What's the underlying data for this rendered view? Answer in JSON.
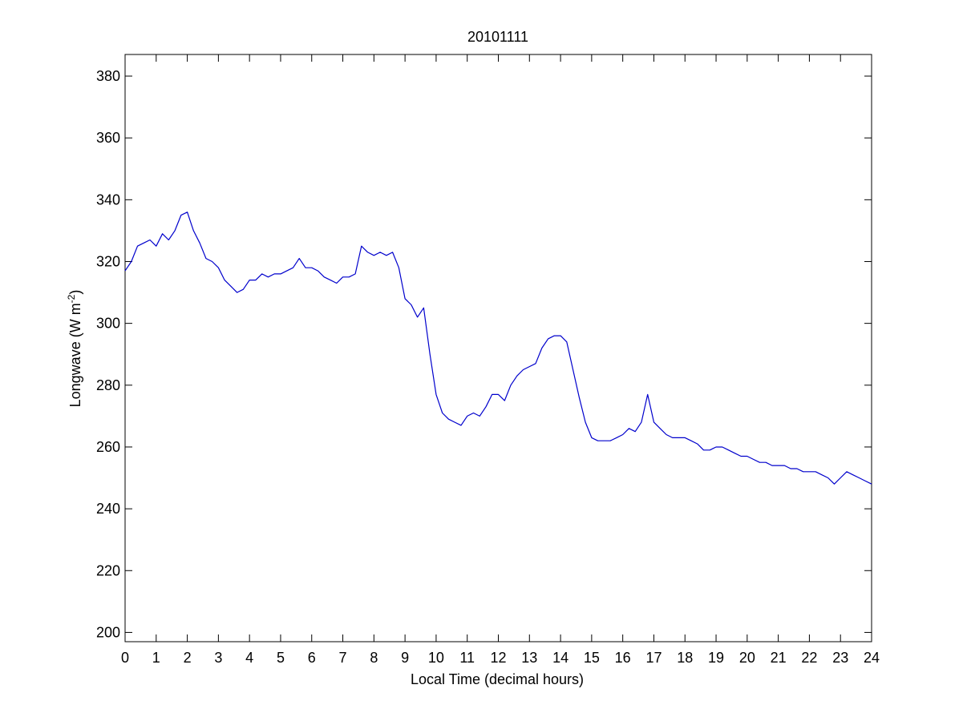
{
  "chart_data": {
    "type": "line",
    "title": "20101111",
    "xlabel": "Local Time (decimal hours)",
    "ylabel_main": "Longwave (W m",
    "ylabel_sup": "-2",
    "ylabel_close": ")",
    "xlim": [
      0,
      24
    ],
    "ylim": [
      197,
      387
    ],
    "xticks": [
      0,
      1,
      2,
      3,
      4,
      5,
      6,
      7,
      8,
      9,
      10,
      11,
      12,
      13,
      14,
      15,
      16,
      17,
      18,
      19,
      20,
      21,
      22,
      23,
      24
    ],
    "yticks": [
      200,
      220,
      240,
      260,
      280,
      300,
      320,
      340,
      360,
      380
    ],
    "grid": false,
    "line_color": "#0000cc",
    "series": [
      {
        "x": [
          0,
          0.2,
          0.4,
          0.6,
          0.8,
          1.0,
          1.2,
          1.4,
          1.6,
          1.8,
          2.0,
          2.2,
          2.4,
          2.6,
          2.8,
          3.0,
          3.2,
          3.4,
          3.6,
          3.8,
          4.0,
          4.2,
          4.4,
          4.6,
          4.8,
          5.0,
          5.2,
          5.4,
          5.6,
          5.8,
          6.0,
          6.2,
          6.4,
          6.6,
          6.8,
          7.0,
          7.2,
          7.4,
          7.6,
          7.8,
          8.0,
          8.2,
          8.4,
          8.6,
          8.8,
          9.0,
          9.2,
          9.4,
          9.6,
          9.8,
          10.0,
          10.2,
          10.4,
          10.6,
          10.8,
          11.0,
          11.2,
          11.4,
          11.6,
          11.8,
          12.0,
          12.2,
          12.4,
          12.6,
          12.8,
          13.0,
          13.2,
          13.4,
          13.6,
          13.8,
          14.0,
          14.2,
          14.4,
          14.6,
          14.8,
          15.0,
          15.2,
          15.4,
          15.6,
          15.8,
          16.0,
          16.2,
          16.4,
          16.6,
          16.8,
          17.0,
          17.2,
          17.4,
          17.6,
          17.8,
          18.0,
          18.2,
          18.4,
          18.6,
          18.8,
          19.0,
          19.2,
          19.4,
          19.6,
          19.8,
          20.0,
          20.2,
          20.4,
          20.6,
          20.8,
          21.0,
          21.2,
          21.4,
          21.6,
          21.8,
          22.0,
          22.2,
          22.4,
          22.6,
          22.8,
          23.0,
          23.2,
          23.4,
          23.6,
          23.8,
          24.0
        ],
        "y": [
          317,
          320,
          325,
          326,
          327,
          325,
          329,
          327,
          330,
          335,
          336,
          330,
          326,
          321,
          320,
          318,
          314,
          312,
          310,
          311,
          314,
          314,
          316,
          315,
          316,
          316,
          317,
          318,
          321,
          318,
          318,
          317,
          315,
          314,
          313,
          315,
          315,
          316,
          325,
          323,
          322,
          323,
          322,
          323,
          318,
          308,
          306,
          302,
          305,
          290,
          277,
          271,
          269,
          268,
          267,
          270,
          271,
          270,
          273,
          277,
          277,
          275,
          280,
          283,
          285,
          286,
          287,
          292,
          295,
          296,
          296,
          294,
          285,
          276,
          268,
          263,
          262,
          262,
          262,
          263,
          264,
          266,
          265,
          268,
          277,
          268,
          266,
          264,
          263,
          263,
          263,
          262,
          261,
          259,
          259,
          260,
          260,
          259,
          258,
          257,
          257,
          256,
          255,
          255,
          254,
          254,
          254,
          253,
          253,
          252,
          252,
          252,
          251,
          250,
          248,
          250,
          252,
          251,
          250,
          249,
          248
        ]
      }
    ]
  }
}
